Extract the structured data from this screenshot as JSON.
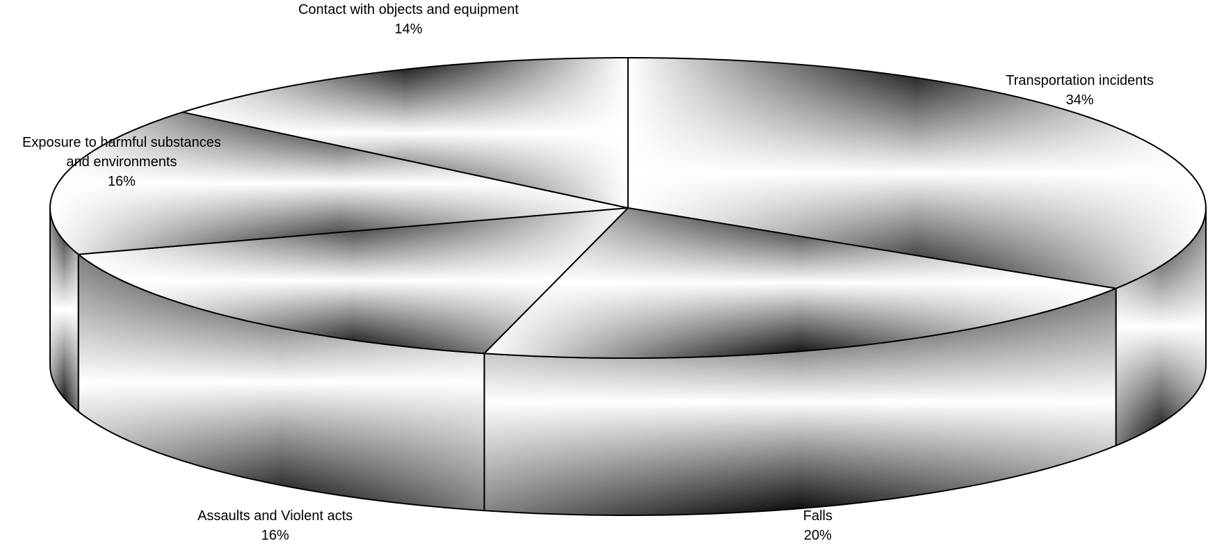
{
  "chart_data": {
    "type": "pie",
    "style": "3d",
    "slices": [
      {
        "label": "Transportation incidents",
        "label_lines": [
          "Transportation incidents"
        ],
        "value": 34,
        "value_label": "34%"
      },
      {
        "label": "Falls",
        "label_lines": [
          "Falls"
        ],
        "value": 20,
        "value_label": "20%"
      },
      {
        "label": "Assaults and Violent acts",
        "label_lines": [
          "Assaults and Violent acts"
        ],
        "value": 16,
        "value_label": "16%"
      },
      {
        "label": "Exposure to harmful substances and environments",
        "label_lines": [
          "Exposure to harmful substances",
          "and environments"
        ],
        "value": 16,
        "value_label": "16%"
      },
      {
        "label": "Contact with objects and equipment",
        "label_lines": [
          "Contact with objects and equipment"
        ],
        "value": 14,
        "value_label": "14%"
      }
    ],
    "fill": "grayscale gradient",
    "edge_color": "#000000"
  }
}
